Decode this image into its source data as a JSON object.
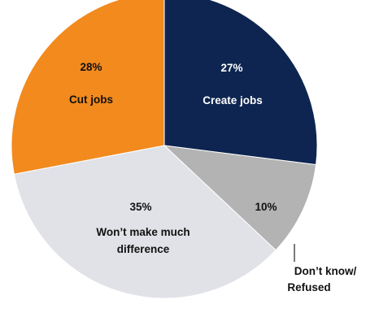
{
  "chart_data": {
    "type": "pie",
    "slices": [
      {
        "label": "Create jobs",
        "value": 27,
        "value_label": "27%",
        "color": "#0d2550",
        "text_color": "#ffffff"
      },
      {
        "label": "Don’t know/ Refused",
        "label_lines": [
          "Don’t know/",
          "Refused"
        ],
        "value": 10,
        "value_label": "10%",
        "color": "#b3b3b3",
        "text_color": "#111111"
      },
      {
        "label": "Won’t make much difference",
        "label_lines": [
          "Won’t make much",
          "difference"
        ],
        "value": 35,
        "value_label": "35%",
        "color": "#e1e1e8",
        "text_color": "#111111"
      },
      {
        "label": "Cut jobs",
        "value": 28,
        "value_label": "28%",
        "color": "#f28a1e",
        "text_color": "#111111"
      }
    ],
    "start_angle_deg": 0,
    "direction": "clockwise",
    "legend": "none",
    "title": ""
  }
}
